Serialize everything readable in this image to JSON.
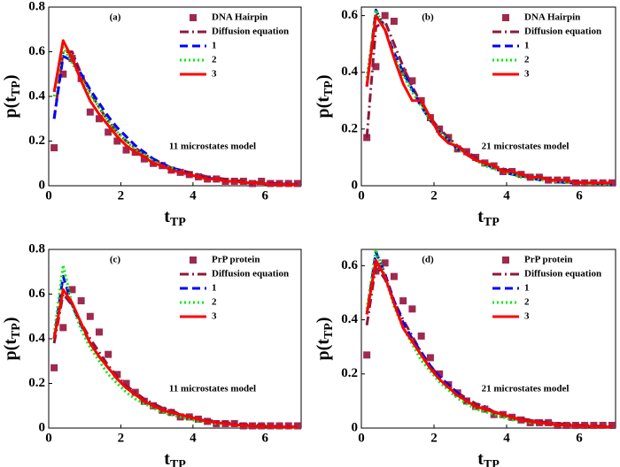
{
  "chart_data": [
    {
      "type": "line",
      "annotation": "(a)",
      "model": "11 microstates model",
      "xlabel": {
        "text": "t",
        "sub": "TP"
      },
      "ylabel": {
        "text": "p(t",
        "sub": "TP",
        "end": ")"
      },
      "xlim": [
        0,
        7
      ],
      "ylim": [
        0,
        0.8
      ],
      "xticks": [
        0,
        2,
        4,
        6
      ],
      "yticks": [
        0,
        0.2,
        0.4,
        0.6,
        0.8
      ],
      "x": [
        0.15,
        0.4,
        0.65,
        0.9,
        1.15,
        1.4,
        1.65,
        1.9,
        2.15,
        2.4,
        2.65,
        2.9,
        3.15,
        3.4,
        3.65,
        3.9,
        4.15,
        4.4,
        4.65,
        4.9,
        5.15,
        5.4,
        5.65,
        5.9,
        6.15,
        6.4,
        6.65,
        6.9
      ],
      "series": [
        {
          "name": "DNA Hairpin",
          "style": "markers",
          "color": "#9e2a4e",
          "values": [
            0.17,
            0.5,
            0.57,
            0.48,
            0.33,
            0.3,
            0.24,
            0.2,
            0.16,
            0.15,
            0.12,
            0.1,
            0.09,
            0.07,
            0.06,
            0.05,
            0.04,
            0.03,
            0.03,
            0.02,
            0.02,
            0.02,
            0.01,
            0.02,
            0.01,
            0.01,
            0.01,
            0.01
          ]
        },
        {
          "name": "Diffusion equation",
          "style": "dashdot",
          "color": "#8b1a3a",
          "values": [
            0.3,
            0.6,
            0.6,
            0.5,
            0.42,
            0.35,
            0.29,
            0.24,
            0.2,
            0.17,
            0.14,
            0.12,
            0.1,
            0.08,
            0.07,
            0.06,
            0.05,
            0.04,
            0.035,
            0.03,
            0.025,
            0.02,
            0.017,
            0.014,
            0.012,
            0.01,
            0.008,
            0.007
          ]
        },
        {
          "name": "1",
          "style": "dashed",
          "color": "#0000ff",
          "values": [
            0.3,
            0.58,
            0.56,
            0.5,
            0.43,
            0.37,
            0.31,
            0.26,
            0.22,
            0.18,
            0.15,
            0.12,
            0.1,
            0.08,
            0.07,
            0.05,
            0.04,
            0.035,
            0.03,
            0.02,
            0.02,
            0.015,
            0.01,
            0.01,
            0.01,
            0.008,
            0.006,
            0.005
          ]
        },
        {
          "name": "2",
          "style": "dotted",
          "color": "#00ee00",
          "values": [
            0.4,
            0.62,
            0.55,
            0.48,
            0.41,
            0.35,
            0.29,
            0.24,
            0.2,
            0.16,
            0.14,
            0.11,
            0.09,
            0.08,
            0.06,
            0.05,
            0.04,
            0.03,
            0.03,
            0.02,
            0.02,
            0.015,
            0.012,
            0.01,
            0.008,
            0.006,
            0.005,
            0.004
          ]
        },
        {
          "name": "3",
          "style": "solid",
          "color": "#ff0000",
          "values": [
            0.42,
            0.65,
            0.57,
            0.47,
            0.38,
            0.32,
            0.27,
            0.22,
            0.18,
            0.15,
            0.13,
            0.1,
            0.09,
            0.07,
            0.06,
            0.05,
            0.04,
            0.03,
            0.03,
            0.02,
            0.02,
            0.015,
            0.012,
            0.01,
            0.008,
            0.006,
            0.005,
            0.004
          ]
        }
      ]
    },
    {
      "type": "line",
      "annotation": "(b)",
      "model": "21 microstates model",
      "xlabel": {
        "text": "t",
        "sub": "TP"
      },
      "ylabel": {
        "text": "p(t",
        "sub": "TP",
        "end": ")"
      },
      "xlim": [
        0,
        7
      ],
      "ylim": [
        0,
        0.63
      ],
      "xticks": [
        0,
        2,
        4,
        6
      ],
      "yticks": [
        0,
        0.2,
        0.4,
        0.6
      ],
      "x": [
        0.15,
        0.4,
        0.65,
        0.9,
        1.15,
        1.4,
        1.65,
        1.9,
        2.15,
        2.4,
        2.65,
        2.9,
        3.15,
        3.4,
        3.65,
        3.9,
        4.15,
        4.4,
        4.65,
        4.9,
        5.15,
        5.4,
        5.65,
        5.9,
        6.15,
        6.4,
        6.65,
        6.9
      ],
      "series": [
        {
          "name": "DNA Hairpin",
          "style": "markers",
          "color": "#9e2a4e",
          "values": [
            0.17,
            0.42,
            0.6,
            0.58,
            0.4,
            0.37,
            0.3,
            0.24,
            0.2,
            0.17,
            0.13,
            0.12,
            0.1,
            0.08,
            0.07,
            0.05,
            0.05,
            0.04,
            0.03,
            0.03,
            0.02,
            0.02,
            0.02,
            0.01,
            0.01,
            0.01,
            0.01,
            0.01
          ]
        },
        {
          "name": "Diffusion equation",
          "style": "dashdot",
          "color": "#8b1a3a",
          "values": [
            0.17,
            0.56,
            0.58,
            0.5,
            0.42,
            0.35,
            0.29,
            0.24,
            0.2,
            0.17,
            0.14,
            0.12,
            0.1,
            0.08,
            0.07,
            0.06,
            0.05,
            0.04,
            0.035,
            0.03,
            0.025,
            0.02,
            0.017,
            0.014,
            0.012,
            0.01,
            0.008,
            0.007
          ]
        },
        {
          "name": "1",
          "style": "dashed",
          "color": "#0000ff",
          "values": [
            0.35,
            0.62,
            0.55,
            0.47,
            0.4,
            0.34,
            0.28,
            0.23,
            0.19,
            0.16,
            0.13,
            0.11,
            0.09,
            0.08,
            0.06,
            0.05,
            0.04,
            0.035,
            0.03,
            0.02,
            0.02,
            0.015,
            0.01,
            0.01,
            0.01,
            0.008,
            0.006,
            0.005
          ]
        },
        {
          "name": "2",
          "style": "dotted",
          "color": "#00ee00",
          "values": [
            0.38,
            0.62,
            0.55,
            0.46,
            0.39,
            0.33,
            0.28,
            0.23,
            0.19,
            0.16,
            0.13,
            0.11,
            0.09,
            0.07,
            0.06,
            0.05,
            0.04,
            0.03,
            0.03,
            0.02,
            0.02,
            0.015,
            0.012,
            0.01,
            0.008,
            0.006,
            0.005,
            0.004
          ]
        },
        {
          "name": "3",
          "style": "solid",
          "color": "#ff0000",
          "values": [
            0.35,
            0.6,
            0.55,
            0.45,
            0.36,
            0.3,
            0.3,
            0.24,
            0.18,
            0.15,
            0.14,
            0.11,
            0.09,
            0.08,
            0.07,
            0.05,
            0.05,
            0.04,
            0.03,
            0.03,
            0.02,
            0.02,
            0.02,
            0.01,
            0.01,
            0.01,
            0.01,
            0.01
          ]
        }
      ]
    },
    {
      "type": "line",
      "annotation": "(c)",
      "model": "11 microstates model",
      "xlabel": {
        "text": "t",
        "sub": "TP"
      },
      "ylabel": {
        "text": "p(t",
        "sub": "TP",
        "end": ")"
      },
      "xlim": [
        0,
        7
      ],
      "ylim": [
        0,
        0.8
      ],
      "xticks": [
        0,
        2,
        4,
        6
      ],
      "yticks": [
        0,
        0.2,
        0.4,
        0.6,
        0.8
      ],
      "x": [
        0.15,
        0.4,
        0.65,
        0.9,
        1.15,
        1.4,
        1.65,
        1.9,
        2.15,
        2.4,
        2.65,
        2.9,
        3.15,
        3.4,
        3.65,
        3.9,
        4.15,
        4.4,
        4.65,
        4.9,
        5.15,
        5.4,
        5.65,
        5.9,
        6.15,
        6.4,
        6.65,
        6.9
      ],
      "series": [
        {
          "name": "PrP protein",
          "style": "markers",
          "color": "#9e2a4e",
          "values": [
            0.27,
            0.45,
            0.62,
            0.57,
            0.5,
            0.43,
            0.33,
            0.24,
            0.2,
            0.16,
            0.12,
            0.1,
            0.08,
            0.07,
            0.05,
            0.05,
            0.04,
            0.03,
            0.02,
            0.02,
            0.02,
            0.01,
            0.01,
            0.01,
            0.01,
            0.01,
            0.01,
            0.01
          ]
        },
        {
          "name": "Diffusion equation",
          "style": "dashdot",
          "color": "#8b1a3a",
          "values": [
            0.38,
            0.6,
            0.55,
            0.47,
            0.4,
            0.34,
            0.28,
            0.23,
            0.19,
            0.16,
            0.13,
            0.11,
            0.09,
            0.08,
            0.06,
            0.05,
            0.04,
            0.035,
            0.03,
            0.025,
            0.02,
            0.017,
            0.014,
            0.012,
            0.01,
            0.008,
            0.007,
            0.006
          ]
        },
        {
          "name": "1",
          "style": "dashed",
          "color": "#0000ff",
          "values": [
            0.4,
            0.68,
            0.55,
            0.46,
            0.38,
            0.32,
            0.27,
            0.22,
            0.18,
            0.15,
            0.12,
            0.1,
            0.08,
            0.07,
            0.06,
            0.05,
            0.04,
            0.03,
            0.025,
            0.02,
            0.015,
            0.012,
            0.01,
            0.008,
            0.007,
            0.006,
            0.005,
            0.004
          ]
        },
        {
          "name": "2",
          "style": "dotted",
          "color": "#00ee00",
          "values": [
            0.42,
            0.73,
            0.55,
            0.44,
            0.36,
            0.3,
            0.24,
            0.2,
            0.16,
            0.13,
            0.11,
            0.09,
            0.07,
            0.06,
            0.05,
            0.04,
            0.03,
            0.03,
            0.02,
            0.02,
            0.015,
            0.012,
            0.01,
            0.008,
            0.006,
            0.005,
            0.004,
            0.003
          ]
        },
        {
          "name": "3",
          "style": "solid",
          "color": "#ff0000",
          "values": [
            0.4,
            0.62,
            0.56,
            0.47,
            0.38,
            0.32,
            0.27,
            0.22,
            0.18,
            0.15,
            0.12,
            0.1,
            0.08,
            0.07,
            0.06,
            0.05,
            0.04,
            0.03,
            0.025,
            0.02,
            0.015,
            0.012,
            0.01,
            0.008,
            0.007,
            0.006,
            0.005,
            0.004
          ]
        }
      ]
    },
    {
      "type": "line",
      "annotation": "(d)",
      "model": "21 microstates model",
      "xlabel": {
        "text": "t",
        "sub": "TP"
      },
      "ylabel": {
        "text": "p(t",
        "sub": "TP",
        "end": ")"
      },
      "xlim": [
        0,
        7
      ],
      "ylim": [
        0,
        0.66
      ],
      "xticks": [
        0,
        2,
        4,
        6
      ],
      "yticks": [
        0,
        0.2,
        0.4,
        0.6
      ],
      "x": [
        0.15,
        0.4,
        0.65,
        0.9,
        1.15,
        1.4,
        1.65,
        1.9,
        2.15,
        2.4,
        2.65,
        2.9,
        3.15,
        3.4,
        3.65,
        3.9,
        4.15,
        4.4,
        4.65,
        4.9,
        5.15,
        5.4,
        5.65,
        5.9,
        6.15,
        6.4,
        6.65,
        6.9
      ],
      "series": [
        {
          "name": "PrP protein",
          "style": "markers",
          "color": "#9e2a4e",
          "values": [
            0.27,
            0.58,
            0.61,
            0.56,
            0.47,
            0.44,
            0.34,
            0.26,
            0.2,
            0.16,
            0.13,
            0.1,
            0.08,
            0.07,
            0.05,
            0.05,
            0.04,
            0.03,
            0.02,
            0.02,
            0.02,
            0.01,
            0.01,
            0.01,
            0.01,
            0.01,
            0.01,
            0.01
          ]
        },
        {
          "name": "Diffusion equation",
          "style": "dashdot",
          "color": "#8b1a3a",
          "values": [
            0.38,
            0.6,
            0.55,
            0.47,
            0.4,
            0.34,
            0.28,
            0.23,
            0.19,
            0.16,
            0.13,
            0.11,
            0.09,
            0.08,
            0.06,
            0.05,
            0.04,
            0.035,
            0.03,
            0.025,
            0.02,
            0.017,
            0.014,
            0.012,
            0.01,
            0.008,
            0.007,
            0.006
          ]
        },
        {
          "name": "1",
          "style": "dashed",
          "color": "#0000ff",
          "values": [
            0.42,
            0.65,
            0.57,
            0.47,
            0.39,
            0.33,
            0.28,
            0.23,
            0.19,
            0.16,
            0.13,
            0.1,
            0.08,
            0.07,
            0.06,
            0.05,
            0.04,
            0.03,
            0.025,
            0.02,
            0.015,
            0.012,
            0.01,
            0.008,
            0.007,
            0.006,
            0.005,
            0.004
          ]
        },
        {
          "name": "2",
          "style": "dotted",
          "color": "#00ee00",
          "values": [
            0.44,
            0.66,
            0.56,
            0.45,
            0.37,
            0.31,
            0.25,
            0.21,
            0.17,
            0.14,
            0.11,
            0.09,
            0.07,
            0.06,
            0.05,
            0.04,
            0.03,
            0.03,
            0.02,
            0.02,
            0.015,
            0.012,
            0.01,
            0.008,
            0.006,
            0.005,
            0.004,
            0.003
          ]
        },
        {
          "name": "3",
          "style": "solid",
          "color": "#ff0000",
          "values": [
            0.42,
            0.62,
            0.56,
            0.46,
            0.37,
            0.32,
            0.27,
            0.22,
            0.18,
            0.15,
            0.12,
            0.1,
            0.08,
            0.07,
            0.06,
            0.05,
            0.04,
            0.03,
            0.025,
            0.02,
            0.015,
            0.012,
            0.01,
            0.008,
            0.007,
            0.006,
            0.005,
            0.004
          ]
        }
      ]
    }
  ]
}
